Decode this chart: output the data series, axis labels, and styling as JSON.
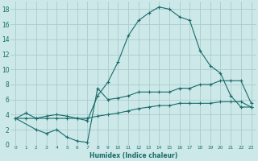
{
  "xlabel": "Humidex (Indice chaleur)",
  "bg_color": "#cce8e8",
  "grid_color": "#aacccc",
  "line_color": "#1a6b6b",
  "xlim": [
    -0.5,
    23.5
  ],
  "ylim": [
    0,
    19
  ],
  "xticks": [
    0,
    1,
    2,
    3,
    4,
    5,
    6,
    7,
    8,
    9,
    10,
    11,
    12,
    13,
    14,
    15,
    16,
    17,
    18,
    19,
    20,
    21,
    22,
    23
  ],
  "yticks": [
    0,
    2,
    4,
    6,
    8,
    10,
    12,
    14,
    16,
    18
  ],
  "line1_x": [
    0,
    1,
    2,
    3,
    4,
    5,
    6,
    7,
    8,
    9,
    10,
    11,
    12,
    13,
    14,
    15,
    16,
    17,
    18,
    19,
    20,
    21,
    22,
    23
  ],
  "line1_y": [
    3.5,
    4.2,
    3.5,
    3.8,
    4.0,
    3.8,
    3.5,
    3.2,
    6.5,
    8.3,
    11.0,
    14.5,
    16.5,
    17.5,
    18.3,
    18.0,
    17.0,
    16.5,
    12.5,
    10.5,
    9.5,
    6.5,
    5.0,
    5.0
  ],
  "line2_x": [
    0,
    2,
    3,
    4,
    5,
    6,
    7,
    8,
    9,
    10,
    11,
    12,
    13,
    14,
    15,
    16,
    17,
    18,
    19,
    20,
    21,
    22,
    23
  ],
  "line2_y": [
    3.5,
    2.0,
    1.5,
    2.0,
    1.0,
    0.5,
    0.3,
    7.5,
    6.0,
    6.2,
    6.5,
    7.0,
    7.0,
    7.0,
    7.0,
    7.5,
    7.5,
    8.0,
    8.0,
    8.5,
    8.5,
    8.5,
    5.5
  ],
  "line3_x": [
    0,
    1,
    2,
    3,
    4,
    5,
    6,
    7,
    8,
    9,
    10,
    11,
    12,
    13,
    14,
    15,
    16,
    17,
    18,
    19,
    20,
    21,
    22,
    23
  ],
  "line3_y": [
    3.5,
    3.5,
    3.5,
    3.5,
    3.5,
    3.5,
    3.5,
    3.5,
    3.8,
    4.0,
    4.2,
    4.5,
    4.8,
    5.0,
    5.2,
    5.2,
    5.5,
    5.5,
    5.5,
    5.5,
    5.7,
    5.7,
    5.7,
    5.0
  ]
}
